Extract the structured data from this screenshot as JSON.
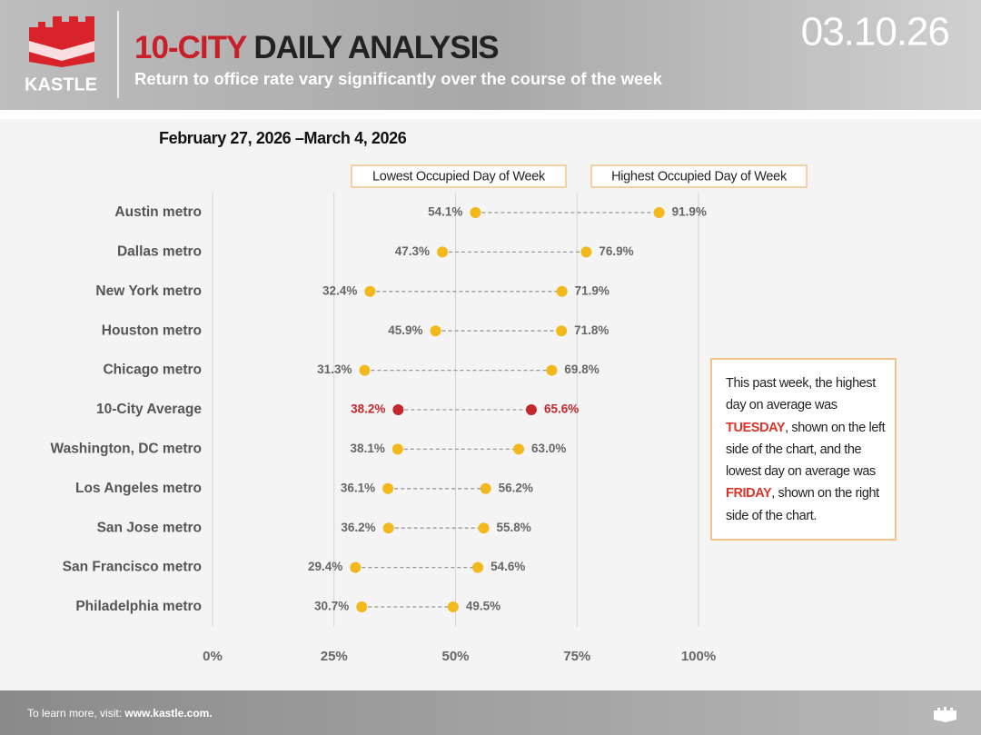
{
  "header": {
    "logo": "KASTLE",
    "title_highlight": "10-CITY",
    "title_rest": "DAILY ANALYSIS",
    "subtitle": "Return to office rate vary significantly over the course of the week",
    "date": "03.10.26"
  },
  "chart_data": {
    "type": "dumbbell",
    "subtitle": "February 27, 2026 –March 4, 2026",
    "categories": [
      "Austin metro",
      "Dallas metro",
      "New York metro",
      "Houston metro",
      "Chicago metro",
      "10-City Average",
      "Washington, DC metro",
      "Los Angeles metro",
      "San Jose metro",
      "San Francisco metro",
      "Philadelphia metro"
    ],
    "series": [
      {
        "name": "Lowest Occupied Day of Week",
        "color": "#f2b81c",
        "values": [
          54.1,
          47.3,
          32.4,
          45.9,
          31.3,
          38.2,
          38.1,
          36.1,
          36.2,
          29.4,
          30.7
        ],
        "value_labels": [
          "54.1%",
          "47.3%",
          "32.4%",
          "45.9%",
          "31.3%",
          "38.2%",
          "38.1%",
          "36.1%",
          "36.2%",
          "29.4%",
          "30.7%"
        ]
      },
      {
        "name": "Highest Occupied Day of Week",
        "color": "#f2b81c",
        "values": [
          91.9,
          76.9,
          71.9,
          71.8,
          69.8,
          65.6,
          63.0,
          56.2,
          55.8,
          54.6,
          49.5
        ],
        "value_labels": [
          "91.9%",
          "76.9%",
          "71.9%",
          "71.8%",
          "69.8%",
          "65.6%",
          "63.0%",
          "56.2%",
          "55.8%",
          "54.6%",
          "49.5%"
        ]
      }
    ],
    "highlight": {
      "category": "10-City Average",
      "color": "#c1272d"
    },
    "xlim": [
      0,
      100
    ],
    "xticks": [
      {
        "value": 0,
        "label": "0%"
      },
      {
        "value": 25,
        "label": "25%"
      },
      {
        "value": 50,
        "label": "50%"
      },
      {
        "value": 75,
        "label": "75%"
      },
      {
        "value": 100,
        "label": "100%"
      }
    ],
    "grid": true
  },
  "note": {
    "parts": [
      "This past week, the highest day on average was ",
      "TUESDAY",
      ", shown on the left side of the chart, and the lowest day on average was ",
      "FRIDAY",
      ", shown on the right side of the chart."
    ]
  },
  "footer": {
    "prefix": "To learn more, visit:",
    "link": "www.kastle.com."
  }
}
